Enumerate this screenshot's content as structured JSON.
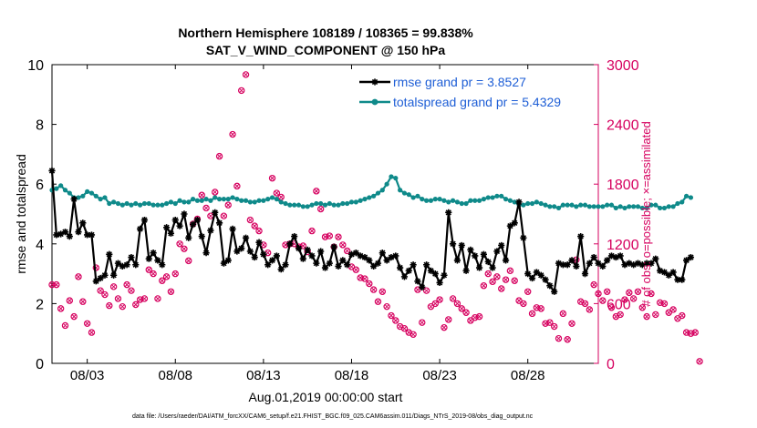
{
  "chart_data": {
    "type": "line",
    "title_line1": "Northern Hemisphere 108189 / 108365 = 99.838%",
    "title_line2": "SAT_V_WIND_COMPONENT @ 150 hPa",
    "xlabel": "Aug.01,2019 00:00:00 start",
    "ylabel_left": "rmse and totalspread",
    "ylabel_right": "# of obs: o=possible; ×=assimilated",
    "footer": "data file: /Users/raeder/DAI/ATM_forcXX/CAM6_setup/f.e21.FHIST_BGC.f09_025.CAM6assim.011/Diags_NTrS_2019-08/obs_diag_output.nc",
    "x_ticks": [
      {
        "day": 3,
        "label": "08/03"
      },
      {
        "day": 8,
        "label": "08/08"
      },
      {
        "day": 13,
        "label": "08/13"
      },
      {
        "day": 18,
        "label": "08/18"
      },
      {
        "day": 23,
        "label": "08/23"
      },
      {
        "day": 28,
        "label": "08/28"
      }
    ],
    "xlim": [
      1,
      32
    ],
    "ylim_left": [
      0,
      10
    ],
    "yticks_left": [
      "0",
      "2",
      "4",
      "6",
      "8",
      "10"
    ],
    "ylim_right": [
      0,
      3000
    ],
    "yticks_right": [
      "0",
      "600",
      "1200",
      "1800",
      "2400",
      "3000"
    ],
    "colors": {
      "rmse": "#000000",
      "spread": "#0f8a8a",
      "obs": "#d6005f",
      "legend_text": "#1f5fd6"
    },
    "series": [
      {
        "name": "rmse grand pr = 3.8527",
        "color": "#000000",
        "marker": "star",
        "x_start": 1.0,
        "x_step": 0.25,
        "values": [
          6.45,
          4.3,
          4.33,
          4.4,
          4.25,
          5.5,
          4.4,
          4.7,
          4.3,
          4.3,
          2.75,
          2.85,
          2.95,
          3.65,
          2.95,
          3.35,
          3.25,
          3.3,
          3.55,
          3.3,
          4.5,
          4.8,
          3.5,
          3.7,
          3.45,
          3.3,
          4.55,
          4.35,
          4.8,
          4.6,
          5.0,
          4.2,
          4.65,
          4.8,
          4.25,
          3.7,
          4.45,
          5.05,
          4.7,
          3.35,
          3.45,
          4.5,
          3.75,
          3.85,
          4.2,
          3.75,
          3.55,
          4.05,
          3.65,
          3.3,
          3.45,
          3.6,
          3.15,
          3.3,
          4.0,
          4.25,
          3.85,
          3.5,
          3.8,
          3.6,
          3.35,
          3.75,
          3.2,
          3.35,
          3.9,
          3.25,
          3.45,
          3.3,
          3.65,
          3.7,
          3.6,
          3.55,
          3.45,
          3.25,
          3.35,
          3.7,
          3.45,
          3.55,
          3.6,
          3.2,
          2.9,
          3.1,
          3.3,
          2.75,
          2.55,
          3.3,
          3.1,
          3.0,
          2.7,
          2.95,
          5.05,
          4.0,
          3.45,
          3.95,
          3.1,
          3.8,
          3.6,
          3.2,
          3.65,
          3.4,
          3.2,
          3.75,
          3.95,
          3.45,
          4.6,
          4.7,
          5.4,
          4.2,
          3.0,
          2.85,
          3.05,
          2.95,
          2.8,
          2.6,
          2.4,
          3.35,
          3.3,
          3.3,
          3.45,
          3.25,
          4.25,
          3.0,
          3.35,
          3.55,
          3.35,
          3.25,
          3.45,
          3.6,
          3.55,
          3.6,
          3.3,
          3.35,
          3.3,
          3.35,
          3.3,
          3.35,
          3.35,
          3.5,
          3.1,
          3.05,
          2.95,
          3.05,
          2.8,
          2.8,
          3.45,
          3.55
        ]
      },
      {
        "name": "totalspread grand pr = 5.4329",
        "color": "#0f8a8a",
        "marker": "dot",
        "x_start": 1.0,
        "x_step": 0.25,
        "values": [
          5.8,
          5.85,
          5.95,
          5.8,
          5.7,
          5.55,
          5.55,
          5.6,
          5.75,
          5.7,
          5.6,
          5.5,
          5.55,
          5.35,
          5.4,
          5.35,
          5.3,
          5.35,
          5.3,
          5.35,
          5.3,
          5.35,
          5.35,
          5.3,
          5.3,
          5.3,
          5.35,
          5.4,
          5.35,
          5.45,
          5.4,
          5.4,
          5.5,
          5.45,
          5.45,
          5.5,
          5.45,
          5.55,
          5.5,
          5.5,
          5.5,
          5.55,
          5.5,
          5.45,
          5.45,
          5.4,
          5.4,
          5.45,
          5.45,
          5.5,
          5.55,
          5.5,
          5.4,
          5.35,
          5.3,
          5.3,
          5.3,
          5.25,
          5.25,
          5.3,
          5.35,
          5.35,
          5.3,
          5.35,
          5.3,
          5.3,
          5.35,
          5.35,
          5.4,
          5.4,
          5.45,
          5.5,
          5.55,
          5.6,
          5.7,
          5.8,
          6.0,
          6.25,
          6.2,
          5.8,
          5.7,
          5.65,
          5.55,
          5.6,
          5.5,
          5.45,
          5.45,
          5.5,
          5.5,
          5.45,
          5.4,
          5.45,
          5.4,
          5.35,
          5.35,
          5.45,
          5.45,
          5.45,
          5.5,
          5.55,
          5.55,
          5.6,
          5.6,
          5.5,
          5.45,
          5.4,
          5.3,
          5.3,
          5.35,
          5.35,
          5.4,
          5.35,
          5.3,
          5.25,
          5.25,
          5.2,
          5.3,
          5.3,
          5.3,
          5.25,
          5.3,
          5.3,
          5.25,
          5.25,
          5.25,
          5.25,
          5.3,
          5.3,
          5.2,
          5.25,
          5.2,
          5.25,
          5.25,
          5.25,
          5.2,
          5.2,
          5.3,
          5.3,
          5.2,
          5.2,
          5.25,
          5.25,
          5.35,
          5.4,
          5.6,
          5.55
        ]
      },
      {
        "name": "# of obs",
        "color": "#d6005f",
        "marker": "circle-x",
        "axis": "right",
        "x_start": 1.0,
        "x_step": 0.25,
        "values": [
          790,
          790,
          550,
          380,
          630,
          470,
          870,
          620,
          400,
          310,
          960,
          730,
          690,
          580,
          770,
          650,
          570,
          790,
          730,
          590,
          640,
          650,
          940,
          900,
          650,
          830,
          870,
          720,
          900,
          1200,
          1150,
          1030,
          1400,
          1450,
          1690,
          1560,
          1480,
          1720,
          2080,
          1480,
          1590,
          2300,
          1780,
          2740,
          2900,
          1440,
          1380,
          1330,
          1190,
          1110,
          1860,
          1710,
          1670,
          1190,
          1200,
          1200,
          1170,
          1180,
          1120,
          1330,
          1730,
          1550,
          1270,
          1280,
          1170,
          1270,
          1190,
          1130,
          970,
          940,
          860,
          850,
          800,
          740,
          620,
          720,
          570,
          480,
          430,
          370,
          350,
          310,
          290,
          740,
          410,
          730,
          570,
          600,
          640,
          360,
          440,
          650,
          600,
          550,
          510,
          430,
          460,
          470,
          780,
          900,
          820,
          870,
          750,
          840,
          930,
          830,
          630,
          600,
          720,
          500,
          560,
          550,
          400,
          410,
          370,
          250,
          500,
          240,
          400,
          1040,
          620,
          600,
          540,
          790,
          700,
          630,
          720,
          560,
          470,
          490,
          640,
          710,
          650,
          720,
          560,
          470,
          700,
          490,
          610,
          600,
          510,
          540,
          450,
          480,
          310,
          300,
          310,
          20
        ]
      }
    ]
  }
}
